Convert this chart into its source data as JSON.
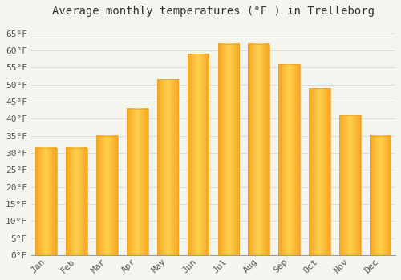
{
  "title": "Average monthly temperatures (°F ) in Trelleborg",
  "months": [
    "Jan",
    "Feb",
    "Mar",
    "Apr",
    "May",
    "Jun",
    "Jul",
    "Aug",
    "Sep",
    "Oct",
    "Nov",
    "Dec"
  ],
  "values": [
    31.5,
    31.5,
    35.0,
    43.0,
    51.5,
    59.0,
    62.0,
    62.0,
    56.0,
    49.0,
    41.0,
    35.0
  ],
  "bar_color_left": "#F5A623",
  "bar_color_center": "#FFD050",
  "bar_color_right": "#F5A623",
  "background_color": "#F5F5F0",
  "grid_color": "#DDDDDD",
  "title_fontsize": 10,
  "tick_fontsize": 8,
  "ylim": [
    0,
    68
  ],
  "yticks": [
    0,
    5,
    10,
    15,
    20,
    25,
    30,
    35,
    40,
    45,
    50,
    55,
    60,
    65
  ]
}
